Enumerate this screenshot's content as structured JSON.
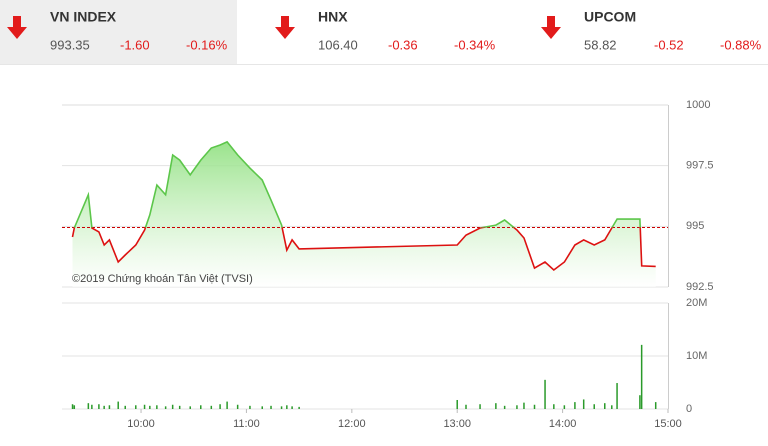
{
  "indices": [
    {
      "name": "VN INDEX",
      "value": "993.35",
      "change": "-1.60",
      "pct": "-0.16%"
    },
    {
      "name": "HNX",
      "value": "106.40",
      "change": "-0.36",
      "pct": "-0.34%"
    },
    {
      "name": "UPCOM",
      "value": "58.82",
      "change": "-0.52",
      "pct": "-0.88%"
    }
  ],
  "chart_data": [
    {
      "type": "line",
      "annotation": "©2019 Chứng khoán Tân Việt (TVSI)",
      "x": [
        "09:21",
        "09:22",
        "09:30",
        "09:32",
        "09:36",
        "09:39",
        "09:42",
        "09:47",
        "09:51",
        "09:57",
        "10:02",
        "10:05",
        "10:09",
        "10:14",
        "10:18",
        "10:22",
        "10:28",
        "10:34",
        "10:40",
        "10:45",
        "10:49",
        "10:55",
        "11:02",
        "11:09",
        "11:14",
        "11:20",
        "11:23",
        "11:26",
        "11:30",
        "13:00",
        "13:05",
        "13:13",
        "13:22",
        "13:27",
        "13:34",
        "13:38",
        "13:44",
        "13:50",
        "13:55",
        "14:01",
        "14:07",
        "14:12",
        "14:18",
        "14:24",
        "14:28",
        "14:31",
        "14:44",
        "14:45",
        "14:53"
      ],
      "values": [
        994.56,
        994.93,
        996.3,
        994.93,
        994.77,
        994.23,
        994.44,
        993.53,
        993.82,
        994.23,
        994.85,
        995.47,
        996.7,
        996.3,
        997.94,
        997.73,
        997.12,
        997.73,
        998.23,
        998.35,
        998.48,
        997.94,
        997.4,
        996.91,
        996.08,
        995.05,
        994.02,
        994.44,
        994.07,
        994.23,
        994.64,
        994.93,
        995.05,
        995.26,
        994.85,
        994.52,
        993.28,
        993.53,
        993.2,
        993.53,
        994.23,
        994.44,
        994.23,
        994.44,
        994.93,
        995.3,
        995.3,
        993.37,
        993.35
      ],
      "reference": 994.95,
      "color_up": "#5cc64a",
      "color_down": "#dd1111",
      "ref_color": "#cc0000",
      "xlim": [
        "09:15",
        "15:00"
      ],
      "ylim": [
        992.5,
        1000
      ],
      "yticks": [
        992.5,
        995,
        997.5,
        1000
      ],
      "grid": true
    },
    {
      "type": "bar",
      "x": [
        "09:21",
        "09:22",
        "09:30",
        "09:32",
        "09:36",
        "09:39",
        "09:42",
        "09:47",
        "09:51",
        "09:57",
        "10:02",
        "10:05",
        "10:09",
        "10:14",
        "10:18",
        "10:22",
        "10:28",
        "10:34",
        "10:40",
        "10:45",
        "10:49",
        "10:55",
        "11:02",
        "11:09",
        "11:14",
        "11:20",
        "11:23",
        "11:26",
        "11:30",
        "13:00",
        "13:05",
        "13:13",
        "13:22",
        "13:27",
        "13:34",
        "13:38",
        "13:44",
        "13:50",
        "13:55",
        "14:01",
        "14:07",
        "14:12",
        "14:18",
        "14:24",
        "14:28",
        "14:31",
        "14:44",
        "14:45",
        "14:53"
      ],
      "values": [
        900000,
        700000,
        1100000,
        800000,
        900000,
        600000,
        700000,
        1400000,
        600000,
        700000,
        800000,
        600000,
        700000,
        500000,
        800000,
        600000,
        500000,
        700000,
        600000,
        900000,
        1400000,
        800000,
        600000,
        500000,
        600000,
        500000,
        700000,
        500000,
        400000,
        1700000,
        800000,
        900000,
        1100000,
        600000,
        700000,
        1200000,
        800000,
        5500000,
        900000,
        700000,
        1300000,
        1800000,
        900000,
        1100000,
        700000,
        4900000,
        2600000,
        12100000,
        1300000
      ],
      "color": "#2a9a2a",
      "xlim": [
        "09:15",
        "15:00"
      ],
      "xticks": [
        "10:00",
        "11:00",
        "12:00",
        "13:00",
        "14:00",
        "15:00"
      ],
      "ylim": [
        0,
        20000000
      ],
      "yticks": [
        0,
        {
          "value": 10000000,
          "label": "10M"
        },
        {
          "value": 20000000,
          "label": "20M"
        }
      ],
      "grid": true
    }
  ]
}
